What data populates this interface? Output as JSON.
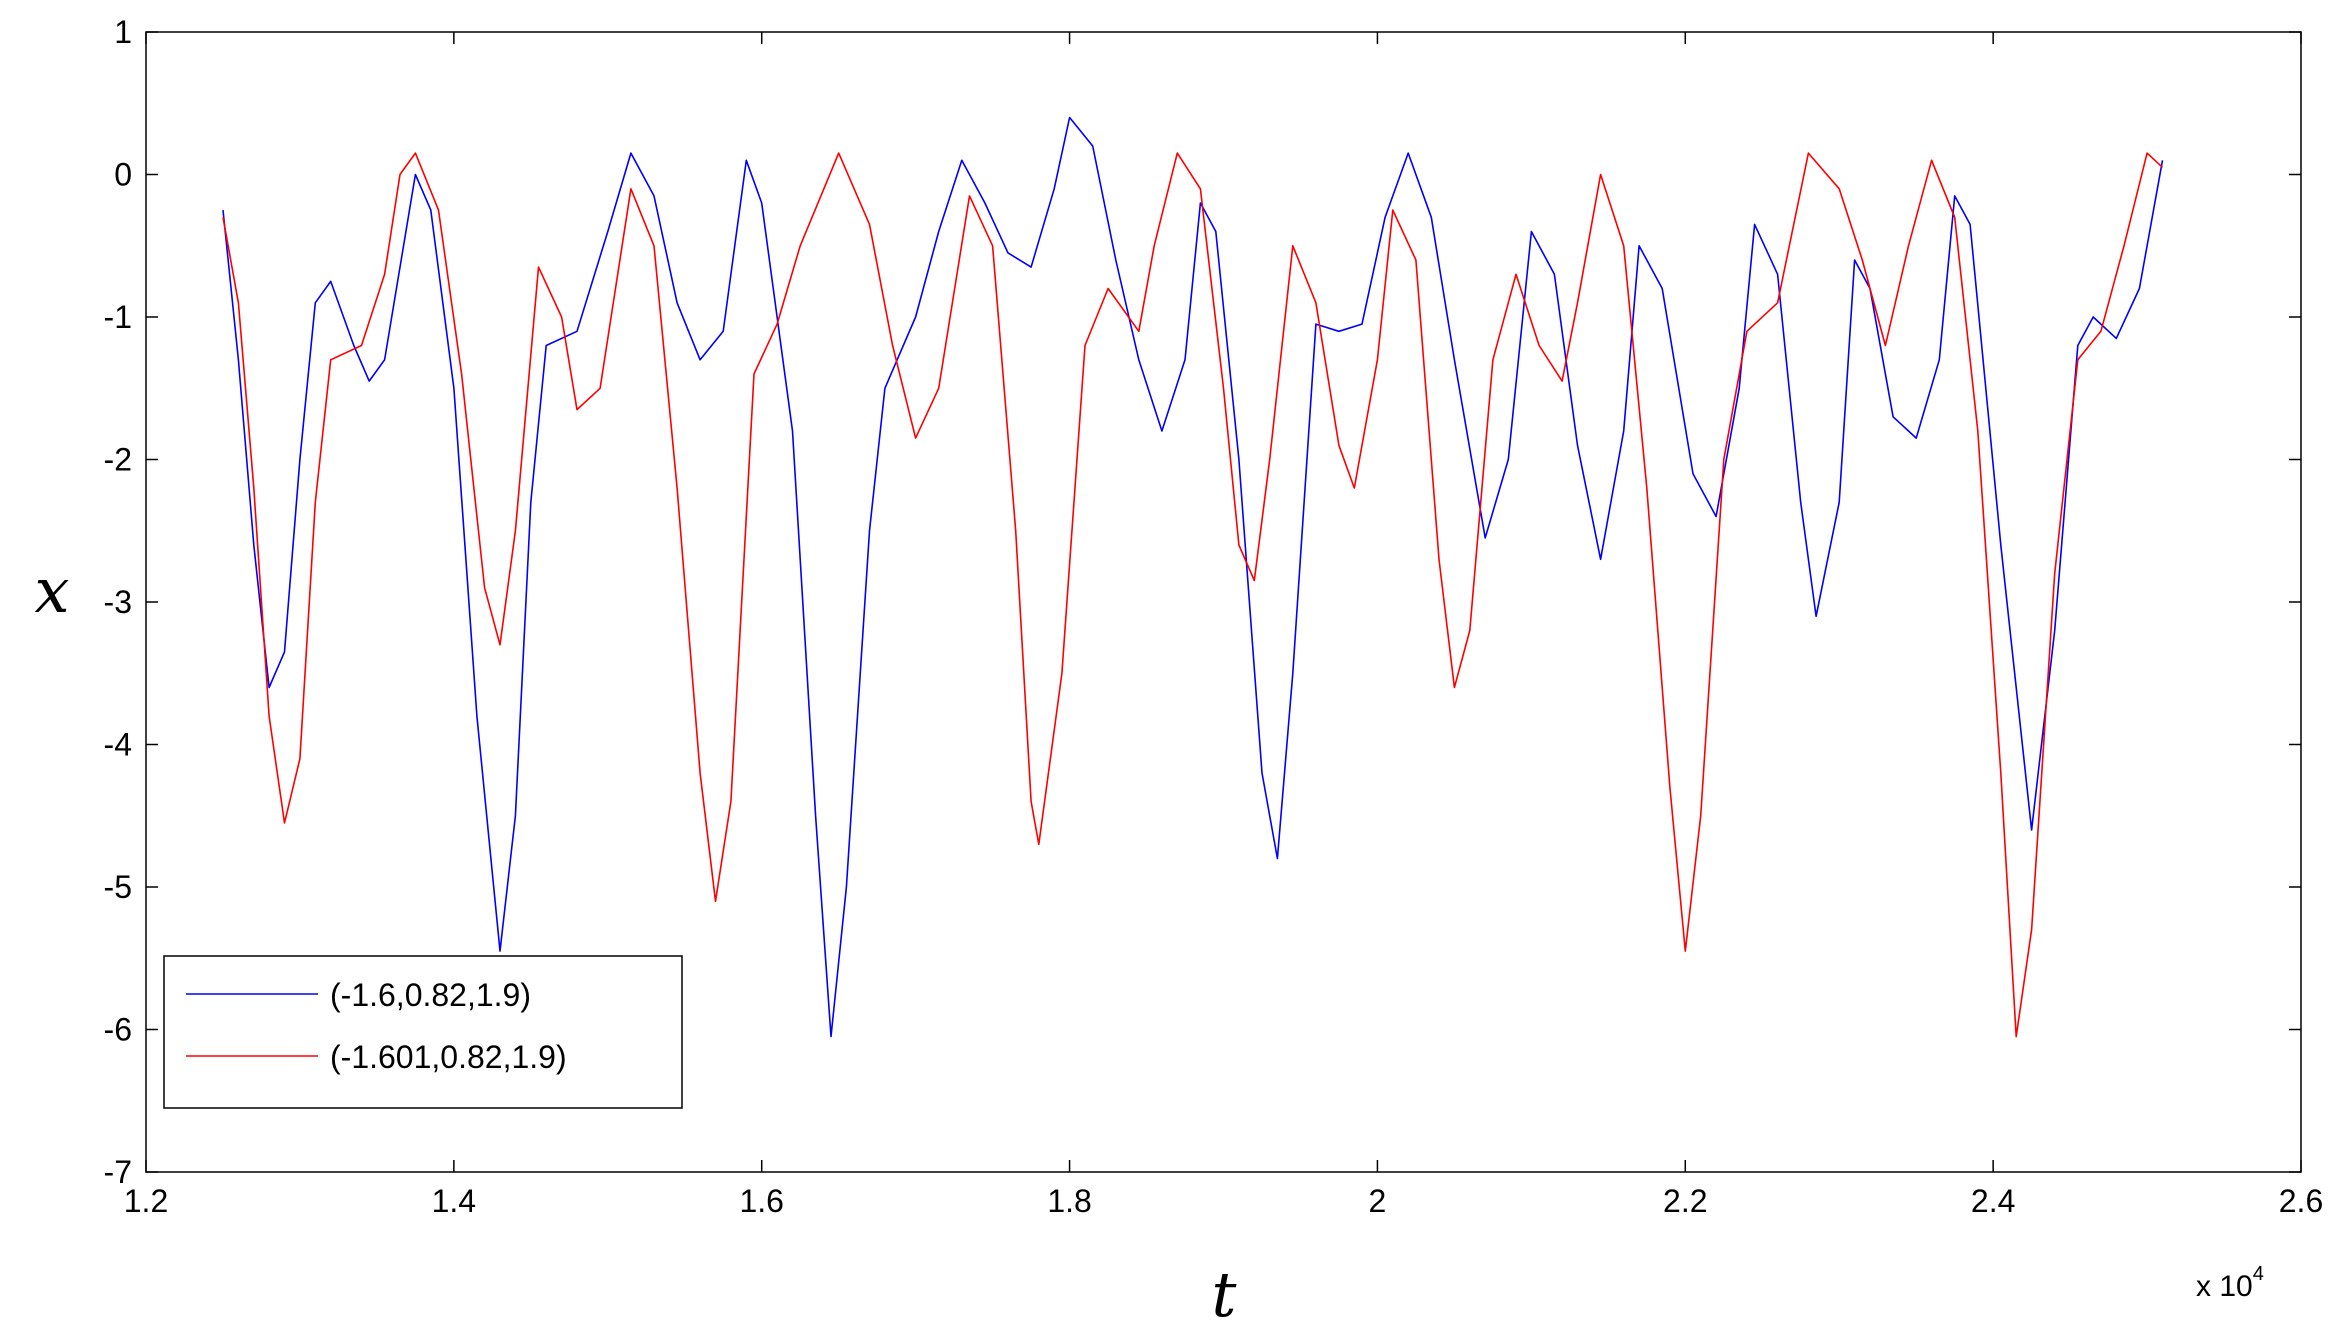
{
  "chart_data": {
    "type": "line",
    "title": "",
    "xlabel": "t",
    "ylabel": "x",
    "x_multiplier_label": "x 10",
    "x_multiplier_exponent": "4",
    "xlim": [
      1.2,
      2.6
    ],
    "ylim": [
      -7,
      1
    ],
    "xticks": [
      1.2,
      1.4,
      1.6,
      1.8,
      2.0,
      2.2,
      2.4,
      2.6
    ],
    "xtick_labels": [
      "1.2",
      "1.4",
      "1.6",
      "1.8",
      "2",
      "2.2",
      "2.4",
      "2.6"
    ],
    "yticks": [
      1,
      0,
      -1,
      -2,
      -3,
      -4,
      -5,
      -6,
      -7
    ],
    "ytick_labels": [
      "1",
      "0",
      "-1",
      "-2",
      "-3",
      "-4",
      "-5",
      "-6",
      "-7"
    ],
    "grid": false,
    "legend_position": "bottom-left",
    "series": [
      {
        "name": "(-1.6,0.82,1.9)",
        "color": "#0000ff",
        "points": [
          [
            1.25,
            -0.25
          ],
          [
            1.26,
            -1.3
          ],
          [
            1.27,
            -2.6
          ],
          [
            1.28,
            -3.6
          ],
          [
            1.29,
            -3.35
          ],
          [
            1.3,
            -2.0
          ],
          [
            1.31,
            -0.9
          ],
          [
            1.32,
            -0.75
          ],
          [
            1.335,
            -1.2
          ],
          [
            1.345,
            -1.45
          ],
          [
            1.355,
            -1.3
          ],
          [
            1.375,
            0.0
          ],
          [
            1.385,
            -0.25
          ],
          [
            1.4,
            -1.5
          ],
          [
            1.415,
            -3.8
          ],
          [
            1.43,
            -5.45
          ],
          [
            1.44,
            -4.5
          ],
          [
            1.45,
            -2.3
          ],
          [
            1.46,
            -1.2
          ],
          [
            1.48,
            -1.1
          ],
          [
            1.5,
            -0.4
          ],
          [
            1.515,
            0.15
          ],
          [
            1.53,
            -0.15
          ],
          [
            1.545,
            -0.9
          ],
          [
            1.56,
            -1.3
          ],
          [
            1.575,
            -1.1
          ],
          [
            1.59,
            0.1
          ],
          [
            1.6,
            -0.2
          ],
          [
            1.62,
            -1.8
          ],
          [
            1.635,
            -4.5
          ],
          [
            1.645,
            -6.05
          ],
          [
            1.655,
            -5.0
          ],
          [
            1.67,
            -2.5
          ],
          [
            1.68,
            -1.5
          ],
          [
            1.7,
            -1.0
          ],
          [
            1.715,
            -0.4
          ],
          [
            1.73,
            0.1
          ],
          [
            1.745,
            -0.2
          ],
          [
            1.76,
            -0.55
          ],
          [
            1.775,
            -0.65
          ],
          [
            1.79,
            -0.1
          ],
          [
            1.8,
            0.4
          ],
          [
            1.815,
            0.2
          ],
          [
            1.83,
            -0.6
          ],
          [
            1.845,
            -1.3
          ],
          [
            1.86,
            -1.8
          ],
          [
            1.875,
            -1.3
          ],
          [
            1.885,
            -0.2
          ],
          [
            1.895,
            -0.4
          ],
          [
            1.91,
            -2.0
          ],
          [
            1.925,
            -4.2
          ],
          [
            1.935,
            -4.8
          ],
          [
            1.945,
            -3.5
          ],
          [
            1.96,
            -1.05
          ],
          [
            1.975,
            -1.1
          ],
          [
            1.99,
            -1.05
          ],
          [
            2.005,
            -0.3
          ],
          [
            2.02,
            0.15
          ],
          [
            2.035,
            -0.3
          ],
          [
            2.05,
            -1.3
          ],
          [
            2.07,
            -2.55
          ],
          [
            2.085,
            -2.0
          ],
          [
            2.1,
            -0.4
          ],
          [
            2.115,
            -0.7
          ],
          [
            2.13,
            -1.9
          ],
          [
            2.145,
            -2.7
          ],
          [
            2.16,
            -1.8
          ],
          [
            2.17,
            -0.5
          ],
          [
            2.185,
            -0.8
          ],
          [
            2.205,
            -2.1
          ],
          [
            2.22,
            -2.4
          ],
          [
            2.235,
            -1.5
          ],
          [
            2.245,
            -0.35
          ],
          [
            2.26,
            -0.7
          ],
          [
            2.275,
            -2.3
          ],
          [
            2.285,
            -3.1
          ],
          [
            2.3,
            -2.3
          ],
          [
            2.31,
            -0.6
          ],
          [
            2.32,
            -0.8
          ],
          [
            2.335,
            -1.7
          ],
          [
            2.35,
            -1.85
          ],
          [
            2.365,
            -1.3
          ],
          [
            2.375,
            -0.15
          ],
          [
            2.385,
            -0.35
          ],
          [
            2.405,
            -2.6
          ],
          [
            2.425,
            -4.6
          ],
          [
            2.44,
            -3.2
          ],
          [
            2.455,
            -1.2
          ],
          [
            2.465,
            -1.0
          ],
          [
            2.48,
            -1.15
          ],
          [
            2.495,
            -0.8
          ],
          [
            2.51,
            0.1
          ]
        ]
      },
      {
        "name": "(-1.601,0.82,1.9)",
        "color": "#ff0000",
        "points": [
          [
            1.25,
            -0.3
          ],
          [
            1.26,
            -0.9
          ],
          [
            1.27,
            -2.2
          ],
          [
            1.28,
            -3.8
          ],
          [
            1.29,
            -4.55
          ],
          [
            1.3,
            -4.1
          ],
          [
            1.31,
            -2.3
          ],
          [
            1.32,
            -1.3
          ],
          [
            1.34,
            -1.2
          ],
          [
            1.355,
            -0.7
          ],
          [
            1.365,
            0.0
          ],
          [
            1.375,
            0.15
          ],
          [
            1.39,
            -0.25
          ],
          [
            1.405,
            -1.4
          ],
          [
            1.42,
            -2.9
          ],
          [
            1.43,
            -3.3
          ],
          [
            1.44,
            -2.5
          ],
          [
            1.455,
            -0.65
          ],
          [
            1.47,
            -1.0
          ],
          [
            1.48,
            -1.65
          ],
          [
            1.495,
            -1.5
          ],
          [
            1.515,
            -0.1
          ],
          [
            1.53,
            -0.5
          ],
          [
            1.545,
            -2.2
          ],
          [
            1.56,
            -4.2
          ],
          [
            1.57,
            -5.1
          ],
          [
            1.58,
            -4.4
          ],
          [
            1.595,
            -1.4
          ],
          [
            1.61,
            -1.05
          ],
          [
            1.625,
            -0.5
          ],
          [
            1.65,
            0.15
          ],
          [
            1.67,
            -0.35
          ],
          [
            1.685,
            -1.2
          ],
          [
            1.7,
            -1.85
          ],
          [
            1.715,
            -1.5
          ],
          [
            1.735,
            -0.15
          ],
          [
            1.75,
            -0.5
          ],
          [
            1.765,
            -2.5
          ],
          [
            1.775,
            -4.4
          ],
          [
            1.78,
            -4.7
          ],
          [
            1.795,
            -3.5
          ],
          [
            1.81,
            -1.2
          ],
          [
            1.825,
            -0.8
          ],
          [
            1.845,
            -1.1
          ],
          [
            1.855,
            -0.5
          ],
          [
            1.87,
            0.15
          ],
          [
            1.885,
            -0.1
          ],
          [
            1.9,
            -1.5
          ],
          [
            1.91,
            -2.6
          ],
          [
            1.92,
            -2.85
          ],
          [
            1.93,
            -2.0
          ],
          [
            1.945,
            -0.5
          ],
          [
            1.96,
            -0.9
          ],
          [
            1.975,
            -1.9
          ],
          [
            1.985,
            -2.2
          ],
          [
            2.0,
            -1.3
          ],
          [
            2.01,
            -0.25
          ],
          [
            2.025,
            -0.6
          ],
          [
            2.04,
            -2.7
          ],
          [
            2.05,
            -3.6
          ],
          [
            2.06,
            -3.2
          ],
          [
            2.075,
            -1.3
          ],
          [
            2.09,
            -0.7
          ],
          [
            2.105,
            -1.2
          ],
          [
            2.12,
            -1.45
          ],
          [
            2.13,
            -0.9
          ],
          [
            2.145,
            0.0
          ],
          [
            2.16,
            -0.5
          ],
          [
            2.175,
            -2.2
          ],
          [
            2.19,
            -4.3
          ],
          [
            2.2,
            -5.45
          ],
          [
            2.21,
            -4.5
          ],
          [
            2.225,
            -2.0
          ],
          [
            2.24,
            -1.1
          ],
          [
            2.26,
            -0.9
          ],
          [
            2.28,
            0.15
          ],
          [
            2.3,
            -0.1
          ],
          [
            2.315,
            -0.6
          ],
          [
            2.33,
            -1.2
          ],
          [
            2.345,
            -0.5
          ],
          [
            2.36,
            0.1
          ],
          [
            2.375,
            -0.3
          ],
          [
            2.39,
            -1.8
          ],
          [
            2.405,
            -4.2
          ],
          [
            2.415,
            -6.05
          ],
          [
            2.425,
            -5.3
          ],
          [
            2.44,
            -2.8
          ],
          [
            2.455,
            -1.3
          ],
          [
            2.47,
            -1.1
          ],
          [
            2.485,
            -0.5
          ],
          [
            2.5,
            0.15
          ],
          [
            2.51,
            0.05
          ]
        ]
      }
    ]
  }
}
